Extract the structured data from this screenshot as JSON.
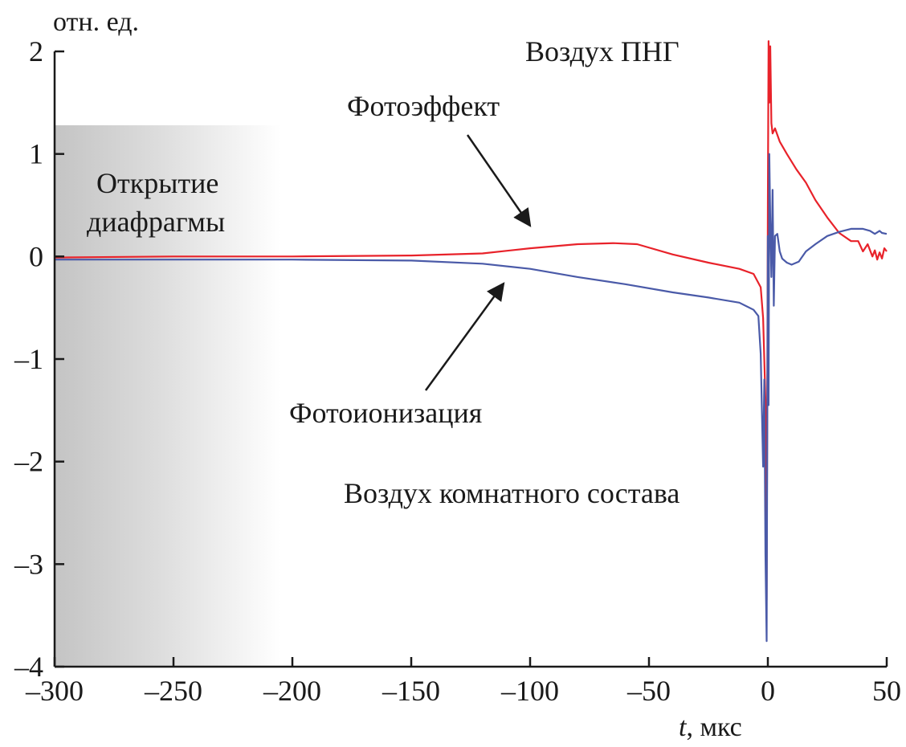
{
  "chart_data": {
    "type": "line",
    "ylabel": "отн. ед.",
    "xlabel_symbol": "t",
    "xlabel_unit": ", мкс",
    "xlim": [
      -300,
      50
    ],
    "ylim": [
      -4,
      2
    ],
    "xticks": [
      -300,
      -250,
      -200,
      -150,
      -100,
      -50,
      0,
      50
    ],
    "xtick_labels": [
      "–300",
      "–250",
      "–200",
      "–150",
      "–100",
      "–50",
      "0",
      "50"
    ],
    "yticks": [
      2,
      1,
      0,
      -1,
      -2,
      -3,
      -4
    ],
    "ytick_labels": [
      "2",
      "1",
      "0",
      "–1",
      "–2",
      "–3",
      "–4"
    ],
    "grid": false,
    "shaded_region": {
      "x": [
        -300,
        -205
      ],
      "y": [
        -4,
        1.28
      ],
      "label_lines": [
        "Открытие",
        "диафрагмы"
      ]
    },
    "annotations": {
      "photoeffect": "Фотоэффект",
      "photoionization": "Фотоионизация",
      "air_png": "Воздух ПНГ",
      "air_room": "Воздух комнатного состава"
    },
    "series": [
      {
        "color": "#e8222a",
        "x": [
          -300,
          -250,
          -200,
          -150,
          -120,
          -100,
          -80,
          -65,
          -55,
          -40,
          -25,
          -12,
          -6,
          -3,
          -2,
          -1,
          -0.5,
          0,
          0.3,
          0.6,
          1,
          1.5,
          2,
          3,
          5,
          8,
          12,
          16,
          20,
          25,
          30,
          35,
          38,
          40,
          42,
          44,
          45,
          46,
          47,
          48,
          49,
          50
        ],
        "y": [
          -0.01,
          0.0,
          0.0,
          0.01,
          0.03,
          0.08,
          0.12,
          0.13,
          0.12,
          0.02,
          -0.06,
          -0.12,
          -0.17,
          -0.3,
          -0.6,
          -1.4,
          -3.35,
          0.5,
          2.1,
          1.5,
          2.05,
          1.3,
          1.2,
          1.25,
          1.12,
          1.0,
          0.85,
          0.72,
          0.55,
          0.38,
          0.23,
          0.15,
          0.15,
          0.05,
          0.12,
          0.0,
          0.06,
          -0.03,
          0.04,
          -0.02,
          0.08,
          0.05
        ]
      },
      {
        "color": "#4a5aa8",
        "x": [
          -300,
          -250,
          -200,
          -150,
          -120,
          -100,
          -80,
          -60,
          -40,
          -25,
          -12,
          -6,
          -4,
          -3,
          -2,
          -1.5,
          -1,
          -0.5,
          0,
          0.3,
          0.6,
          1,
          1.5,
          2,
          2.5,
          3,
          4,
          5,
          6,
          8,
          10,
          13,
          16,
          20,
          25,
          30,
          35,
          40,
          43,
          45,
          47,
          48,
          50
        ],
        "y": [
          -0.03,
          -0.03,
          -0.03,
          -0.04,
          -0.07,
          -0.12,
          -0.2,
          -0.27,
          -0.35,
          -0.4,
          -0.45,
          -0.52,
          -0.58,
          -0.95,
          -2.05,
          -1.2,
          -2.9,
          -3.75,
          0.2,
          -1.45,
          1.0,
          0.35,
          -0.2,
          0.65,
          -0.48,
          0.2,
          0.22,
          0.05,
          -0.02,
          -0.06,
          -0.08,
          -0.05,
          0.05,
          0.12,
          0.2,
          0.24,
          0.27,
          0.27,
          0.25,
          0.22,
          0.25,
          0.23,
          0.22
        ]
      }
    ]
  }
}
